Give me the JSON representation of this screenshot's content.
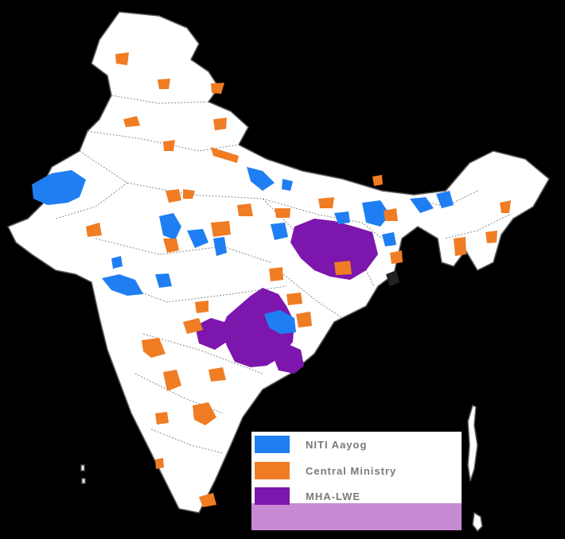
{
  "colors": {
    "niti": "#1f7ff2",
    "central": "#f07c23",
    "mha": "#7d16ad",
    "land": "#ffffff",
    "border": "#5a5a5a",
    "background": "#000000"
  },
  "legend": {
    "items": [
      {
        "label": "NITI Aayog",
        "color": "#1f7ff2",
        "icon": "blue-swatch"
      },
      {
        "label": "Central Ministry",
        "color": "#f07c23",
        "icon": "orange-swatch"
      },
      {
        "label": "MHA-LWE",
        "color": "#7d16ad",
        "icon": "purple-swatch"
      }
    ]
  }
}
